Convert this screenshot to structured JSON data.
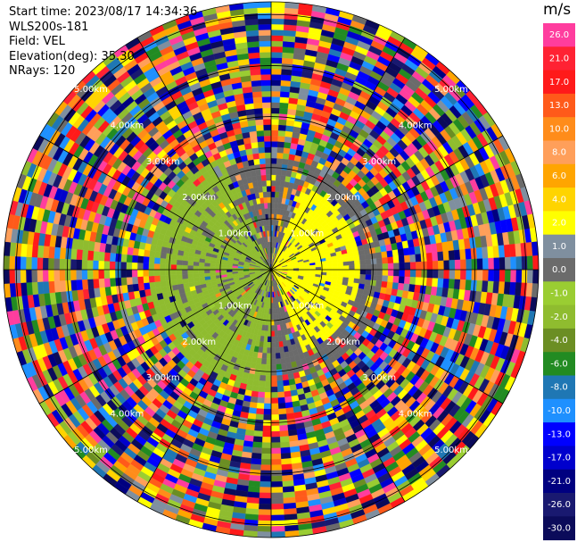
{
  "header": {
    "start_time": "Start time: 2023/08/17 14:34:36",
    "instrument": "WLS200s-181",
    "field": "Field: VEL",
    "elevation": "Elevation(deg): 35.30",
    "nrays": "NRays: 120"
  },
  "colorbar": {
    "unit": "m/s",
    "labels": [
      "26.0",
      "21.0",
      "17.0",
      "13.0",
      "10.0",
      "8.0",
      "6.0",
      "4.0",
      "2.0",
      "1.0",
      "0.0",
      "-1.0",
      "-2.0",
      "-4.0",
      "-6.0",
      "-8.0",
      "-10.0",
      "-13.0",
      "-17.0",
      "-21.0",
      "-26.0",
      "-30.0"
    ],
    "colors": [
      "#ff3d9e",
      "#ff2233",
      "#ff1a1a",
      "#ff5a1a",
      "#ff8c1a",
      "#ff9f5a",
      "#ffa500",
      "#ffd400",
      "#ffff00",
      "#7f8f9f",
      "#6b6b6b",
      "#9acd32",
      "#8fbc2f",
      "#6b8e23",
      "#228b22",
      "#1f77b4",
      "#1e90ff",
      "#0000ff",
      "#0000cd",
      "#000080",
      "#191970",
      "#0b0b5a"
    ]
  },
  "chart_data": {
    "type": "ppi",
    "field": "VEL",
    "units": "m/s",
    "elevation_deg": 35.3,
    "n_rays": 120,
    "range_rings_km": [
      1.0,
      2.0,
      3.0,
      4.0,
      5.0
    ],
    "ring_labels": [
      "1.00km",
      "2.00km",
      "3.00km",
      "4.00km",
      "5.00km"
    ],
    "max_range_km": 5.25,
    "sectors": [
      {
        "azimuth_deg": [
          20,
          160
        ],
        "range_km": [
          0,
          1.8
        ],
        "dominant_value": 2.0,
        "description_color": "yellow"
      },
      {
        "azimuth_deg": [
          180,
          340
        ],
        "range_km": [
          0,
          2.5
        ],
        "dominant_value": -2.0,
        "description_color": "yellowgreen"
      },
      {
        "azimuth_deg": [
          0,
          360
        ],
        "range_km": [
          1.0,
          2.2
        ],
        "dominant_value": 0.0,
        "description_color": "gray"
      },
      {
        "azimuth_deg": [
          0,
          360
        ],
        "range_km": [
          2.2,
          5.25
        ],
        "dominant_value": null,
        "description_color": "noisy"
      }
    ]
  }
}
